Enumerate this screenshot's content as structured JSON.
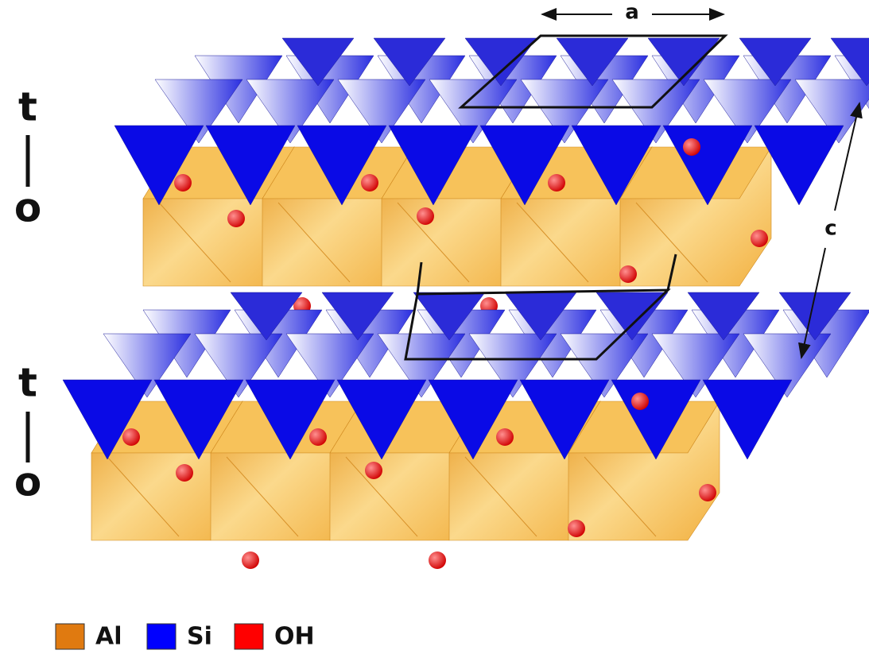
{
  "layers": [
    {
      "t_label": "t",
      "o_label": "o"
    },
    {
      "t_label": "t",
      "o_label": "o"
    }
  ],
  "axes": {
    "a": "a",
    "c": "c"
  },
  "legend": [
    {
      "label": "Al"
    },
    {
      "label": "Si"
    },
    {
      "label": "OH"
    }
  ]
}
